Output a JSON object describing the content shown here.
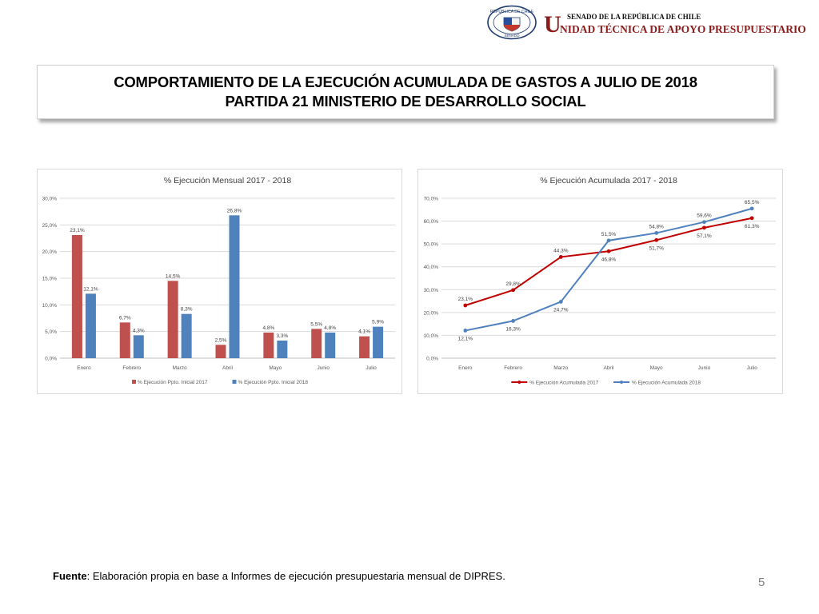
{
  "header": {
    "seal_text": "REPÚBLICA DE CHILE",
    "seal_sub": "SENADO",
    "org_line1": "SENADO DE LA REPÚBLICA DE CHILE",
    "org_initial": "U",
    "org_line2": "NIDAD TÉCNICA DE APOYO PRESUPUESTARIO",
    "accent_color": "#8b1c1c"
  },
  "title": {
    "line1": "COMPORTAMIENTO DE LA EJECUCIÓN ACUMULADA DE GASTOS A JULIO DE 2018",
    "line2": "PARTIDA 21 MINISTERIO DE DESARROLLO SOCIAL"
  },
  "chart_data": [
    {
      "type": "bar",
      "title": "% Ejecución Mensual 2017 - 2018",
      "categories": [
        "Enero",
        "Febrero",
        "Marzo",
        "Abril",
        "Mayo",
        "Junio",
        "Julio"
      ],
      "series": [
        {
          "name": "% Ejecución Ppto. Inicial 2017",
          "color": "#c0504d",
          "values": [
            23.1,
            6.7,
            14.5,
            2.5,
            4.8,
            5.5,
            4.1
          ],
          "labels": [
            "23,1%",
            "6,7%",
            "14,5%",
            "2,5%",
            "4,8%",
            "5,5%",
            "4,1%"
          ]
        },
        {
          "name": "% Ejecución Ppto. Inicial 2018",
          "color": "#4f81bd",
          "values": [
            12.1,
            4.3,
            8.3,
            26.8,
            3.3,
            4.8,
            5.9
          ],
          "labels": [
            "12,1%",
            "4,3%",
            "8,3%",
            "26,8%",
            "3,3%",
            "4,8%",
            "5,9%"
          ]
        }
      ],
      "ylim": [
        0,
        30
      ],
      "yticks": [
        0,
        5,
        10,
        15,
        20,
        25,
        30
      ],
      "ytick_labels": [
        "0,0%",
        "5,0%",
        "10,0%",
        "15,0%",
        "20,0%",
        "25,0%",
        "30,0%"
      ],
      "grid": true,
      "legend": "bottom"
    },
    {
      "type": "line",
      "title": "% Ejecución Acumulada 2017 - 2018",
      "categories": [
        "Enero",
        "Febrero",
        "Marzo",
        "Abril",
        "Mayo",
        "Junio",
        "Julio"
      ],
      "series": [
        {
          "name": "% Ejecución Acumulada 2017",
          "color": "#c00000",
          "values": [
            23.1,
            29.8,
            44.3,
            46.8,
            51.7,
            57.1,
            61.3
          ],
          "labels": [
            "23,1%",
            "29,8%",
            "44,3%",
            "46,8%",
            "51,7%",
            "57,1%",
            "61,3%"
          ]
        },
        {
          "name": "% Ejecución Acumulada 2018",
          "color": "#4f81bd",
          "values": [
            12.1,
            16.3,
            24.7,
            51.5,
            54.8,
            59.6,
            65.5
          ],
          "labels": [
            "12,1%",
            "16,3%",
            "24,7%",
            "51,5%",
            "54,8%",
            "59,6%",
            "65,5%"
          ]
        }
      ],
      "ylim": [
        0,
        70
      ],
      "yticks": [
        0,
        10,
        20,
        30,
        40,
        50,
        60,
        70
      ],
      "ytick_labels": [
        "0,0%",
        "10,0%",
        "20,0%",
        "30,0%",
        "40,0%",
        "50,0%",
        "60,0%",
        "70,0%"
      ],
      "grid": true,
      "legend": "bottom"
    }
  ],
  "footer": {
    "source_label": "Fuente",
    "source_text": ": Elaboración propia en base  a Informes de ejecución presupuestaria mensual de DIPRES."
  },
  "page_number": "5"
}
